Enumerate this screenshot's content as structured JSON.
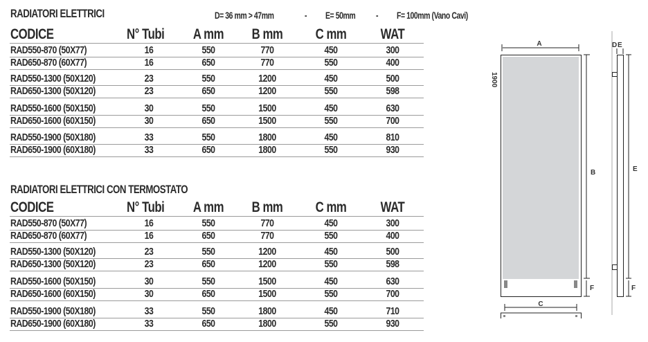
{
  "specs": {
    "d": "D= 36 mm > 47mm",
    "dot1": "-",
    "e": "E= 50mm",
    "dot2": "-",
    "f": "F= 100mm (Vano Cavi)"
  },
  "columns": [
    "CODICE",
    "N° Tubi",
    "A mm",
    "B mm",
    "C mm",
    "WAT"
  ],
  "tables": [
    {
      "title": "RADIATORI ELETTRICI",
      "rows": [
        [
          "RAD550-870 (50X77)",
          "16",
          "550",
          "770",
          "450",
          "300"
        ],
        [
          "RAD650-870 (60X77)",
          "16",
          "650",
          "770",
          "550",
          "400"
        ],
        [
          "RAD550-1300 (50X120)",
          "23",
          "550",
          "1200",
          "450",
          "500"
        ],
        [
          "RAD650-1300 (50X120)",
          "23",
          "650",
          "1200",
          "550",
          "598"
        ],
        [
          "RAD550-1600 (50X150)",
          "30",
          "550",
          "1500",
          "450",
          "630"
        ],
        [
          "RAD650-1600 (60X150)",
          "30",
          "650",
          "1500",
          "550",
          "700"
        ],
        [
          "RAD550-1900 (50X180)",
          "33",
          "550",
          "1800",
          "450",
          "810"
        ],
        [
          "RAD650-1900 (60X180)",
          "33",
          "650",
          "1800",
          "550",
          "930"
        ]
      ]
    },
    {
      "title": "RADIATORI ELETTRICI CON TERMOSTATO",
      "rows": [
        [
          "RAD550-870 (50X77)",
          "16",
          "550",
          "770",
          "450",
          "300"
        ],
        [
          "RAD650-870 (60X77)",
          "16",
          "650",
          "770",
          "550",
          "400"
        ],
        [
          "RAD550-1300 (50X120)",
          "23",
          "550",
          "1200",
          "450",
          "500"
        ],
        [
          "RAD650-1300 (50X120)",
          "23",
          "650",
          "1200",
          "550",
          "598"
        ],
        [
          "RAD550-1600 (50X150)",
          "30",
          "550",
          "1500",
          "450",
          "630"
        ],
        [
          "RAD650-1600 (60X150)",
          "30",
          "650",
          "1500",
          "550",
          "700"
        ],
        [
          "RAD550-1900 (50X180)",
          "33",
          "550",
          "1800",
          "450",
          "710"
        ],
        [
          "RAD650-1900 (60X180)",
          "33",
          "650",
          "1800",
          "550",
          "930"
        ]
      ]
    }
  ],
  "diagram": {
    "height_label": "1900",
    "a": "A",
    "b": "B",
    "c": "C",
    "d": "D",
    "e": "E",
    "b_side": "E",
    "f": "F",
    "f_side": "F",
    "panel_color": "#d4d6d8"
  }
}
